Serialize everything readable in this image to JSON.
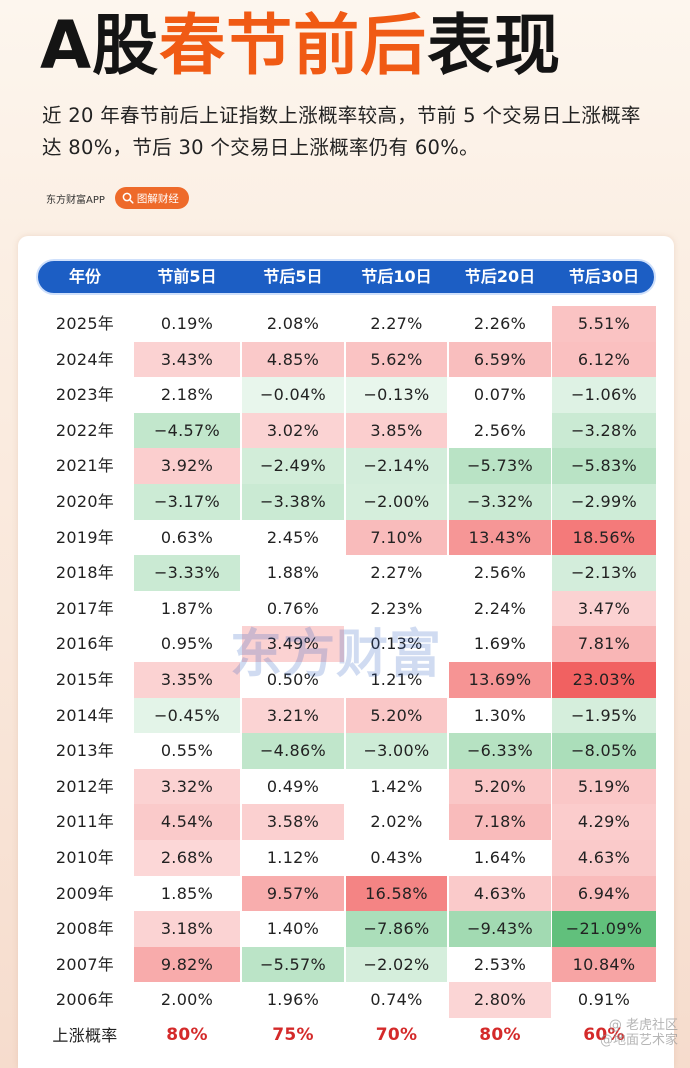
{
  "title": {
    "part1": "A股",
    "part2": "春节前后",
    "part3": "表现"
  },
  "subtitle": "近 20 年春节前后上证指数上涨概率较高，节前 5 个交易日上涨概率达 80%，节后 30 个交易日上涨概率仍有 60%。",
  "brand": {
    "name": "东方财富APP",
    "pill": "图解财经"
  },
  "watermark": "东方财富",
  "corner_mark": {
    "line1": "@ 老虎社区",
    "line2": "@地面艺术家"
  },
  "table": {
    "headers": [
      "年份",
      "节前5日",
      "节后5日",
      "节后10日",
      "节后20日",
      "节后30日"
    ],
    "rows": [
      {
        "year": "2025年",
        "values": [
          "0.19%",
          "2.08%",
          "2.27%",
          "2.26%",
          "5.51%"
        ]
      },
      {
        "year": "2024年",
        "values": [
          "3.43%",
          "4.85%",
          "5.62%",
          "6.59%",
          "6.12%"
        ]
      },
      {
        "year": "2023年",
        "values": [
          "2.18%",
          "−0.04%",
          "−0.13%",
          "0.07%",
          "−1.06%"
        ]
      },
      {
        "year": "2022年",
        "values": [
          "−4.57%",
          "3.02%",
          "3.85%",
          "2.56%",
          "−3.28%"
        ]
      },
      {
        "year": "2021年",
        "values": [
          "3.92%",
          "−2.49%",
          "−2.14%",
          "−5.73%",
          "−5.83%"
        ]
      },
      {
        "year": "2020年",
        "values": [
          "−3.17%",
          "−3.38%",
          "−2.00%",
          "−3.32%",
          "−2.99%"
        ]
      },
      {
        "year": "2019年",
        "values": [
          "0.63%",
          "2.45%",
          "7.10%",
          "13.43%",
          "18.56%"
        ]
      },
      {
        "year": "2018年",
        "values": [
          "−3.33%",
          "1.88%",
          "2.27%",
          "2.56%",
          "−2.13%"
        ]
      },
      {
        "year": "2017年",
        "values": [
          "1.87%",
          "0.76%",
          "2.23%",
          "2.24%",
          "3.47%"
        ]
      },
      {
        "year": "2016年",
        "values": [
          "0.95%",
          "3.49%",
          "0.13%",
          "1.69%",
          "7.81%"
        ]
      },
      {
        "year": "2015年",
        "values": [
          "3.35%",
          "0.50%",
          "1.21%",
          "13.69%",
          "23.03%"
        ]
      },
      {
        "year": "2014年",
        "values": [
          "−0.45%",
          "3.21%",
          "5.20%",
          "1.30%",
          "−1.95%"
        ]
      },
      {
        "year": "2013年",
        "values": [
          "0.55%",
          "−4.86%",
          "−3.00%",
          "−6.33%",
          "−8.05%"
        ]
      },
      {
        "year": "2012年",
        "values": [
          "3.32%",
          "0.49%",
          "1.42%",
          "5.20%",
          "5.19%"
        ]
      },
      {
        "year": "2011年",
        "values": [
          "4.54%",
          "3.58%",
          "2.02%",
          "7.18%",
          "4.29%"
        ]
      },
      {
        "year": "2010年",
        "values": [
          "2.68%",
          "1.12%",
          "0.43%",
          "1.64%",
          "4.63%"
        ]
      },
      {
        "year": "2009年",
        "values": [
          "1.85%",
          "9.57%",
          "16.58%",
          "4.63%",
          "6.94%"
        ]
      },
      {
        "year": "2008年",
        "values": [
          "3.18%",
          "1.40%",
          "−7.86%",
          "−9.43%",
          "−21.09%"
        ]
      },
      {
        "year": "2007年",
        "values": [
          "9.82%",
          "−5.57%",
          "−2.02%",
          "2.53%",
          "10.84%"
        ]
      },
      {
        "year": "2006年",
        "values": [
          "2.00%",
          "1.96%",
          "0.74%",
          "2.80%",
          "0.91%"
        ]
      }
    ],
    "summary": {
      "label": "上涨概率",
      "values": [
        "80%",
        "75%",
        "70%",
        "80%",
        "60%"
      ]
    }
  }
}
